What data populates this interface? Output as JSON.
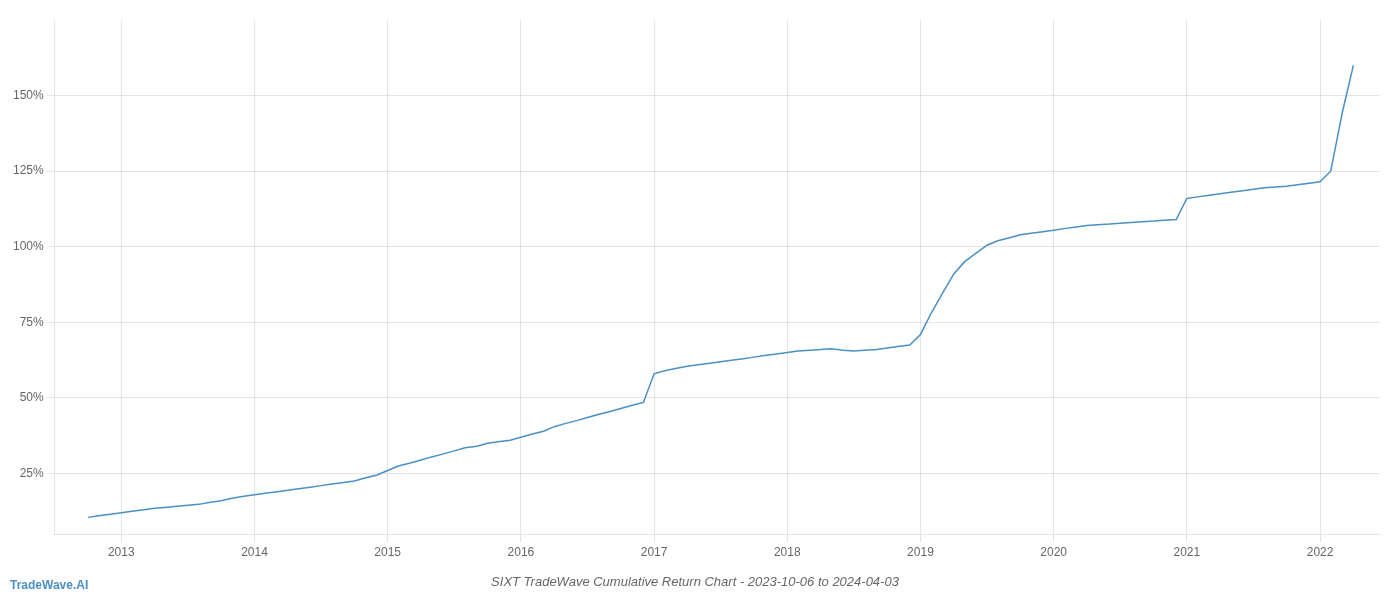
{
  "chart_data": {
    "type": "line",
    "title": "SIXT TradeWave Cumulative Return Chart - 2023-10-06 to 2024-04-03",
    "annotations": [
      "TradeWave.AI"
    ],
    "color": "#4a90c4",
    "grid": true,
    "x": [
      2012.75,
      2012.83,
      2012.92,
      2013.0,
      2013.08,
      2013.17,
      2013.25,
      2013.33,
      2013.42,
      2013.5,
      2013.58,
      2013.67,
      2013.75,
      2013.83,
      2013.92,
      2014.0,
      2014.08,
      2014.17,
      2014.25,
      2014.33,
      2014.42,
      2014.5,
      2014.58,
      2014.67,
      2014.75,
      2014.83,
      2014.92,
      2015.0,
      2015.08,
      2015.17,
      2015.25,
      2015.33,
      2015.42,
      2015.5,
      2015.58,
      2015.67,
      2015.75,
      2015.83,
      2015.92,
      2016.0,
      2016.08,
      2016.17,
      2016.25,
      2016.33,
      2016.42,
      2016.5,
      2016.58,
      2016.67,
      2016.75,
      2016.83,
      2016.92,
      2017.0,
      2017.08,
      2017.17,
      2017.25,
      2017.33,
      2017.42,
      2017.5,
      2017.58,
      2017.67,
      2017.75,
      2017.83,
      2017.92,
      2018.0,
      2018.08,
      2018.17,
      2018.25,
      2018.33,
      2018.42,
      2018.5,
      2018.58,
      2018.67,
      2018.75,
      2018.83,
      2018.92,
      2019.0,
      2019.08,
      2019.17,
      2019.25,
      2019.33,
      2019.42,
      2019.5,
      2019.58,
      2019.67,
      2019.75,
      2019.83,
      2019.92,
      2020.0,
      2020.08,
      2020.17,
      2020.25,
      2020.33,
      2020.42,
      2020.5,
      2020.58,
      2020.67,
      2020.75,
      2020.83,
      2020.92,
      2021.0,
      2021.08,
      2021.17,
      2021.25,
      2021.33,
      2021.42,
      2021.5,
      2021.58,
      2021.67,
      2021.75,
      2021.83,
      2021.92,
      2022.0,
      2022.08,
      2022.17,
      2022.25
    ],
    "values": [
      10.5,
      11.0,
      11.5,
      12.0,
      12.5,
      13.0,
      13.5,
      13.8,
      14.2,
      14.5,
      14.8,
      15.5,
      16.0,
      16.8,
      17.5,
      18.0,
      18.5,
      19.0,
      19.5,
      20.0,
      20.5,
      21.0,
      21.5,
      22.0,
      22.5,
      23.5,
      24.5,
      26.0,
      27.5,
      28.5,
      29.5,
      30.5,
      31.5,
      32.5,
      33.5,
      34.0,
      35.0,
      35.5,
      36.0,
      37.0,
      38.0,
      39.0,
      40.5,
      41.5,
      42.5,
      43.5,
      44.5,
      45.5,
      46.5,
      47.5,
      48.5,
      58.0,
      59.0,
      59.8,
      60.5,
      61.0,
      61.5,
      62.0,
      62.5,
      63.0,
      63.5,
      64.0,
      64.5,
      65.0,
      65.5,
      65.8,
      66.0,
      66.3,
      65.8,
      65.5,
      65.8,
      66.0,
      66.5,
      67.0,
      67.5,
      71.0,
      78.0,
      85.0,
      91.0,
      95.0,
      98.0,
      100.5,
      102.0,
      103.0,
      104.0,
      104.5,
      105.0,
      105.5,
      106.0,
      106.5,
      107.0,
      107.3,
      107.5,
      107.8,
      108.0,
      108.3,
      108.5,
      108.8,
      109.0,
      116.0,
      116.5,
      117.0,
      117.5,
      118.0,
      118.5,
      119.0,
      119.5,
      119.8,
      120.0,
      120.5,
      121.0,
      121.5,
      125.0,
      145.0,
      160.0
    ],
    "xlim": [
      2012.5,
      2022.45
    ],
    "xticks": [
      2013,
      2014,
      2015,
      2016,
      2017,
      2018,
      2019,
      2020,
      2021,
      2022
    ],
    "ylim": [
      5,
      175
    ],
    "yticks": [
      {
        "value": 25,
        "label": "25%"
      },
      {
        "value": 50,
        "label": "50%"
      },
      {
        "value": 75,
        "label": "75%"
      },
      {
        "value": 100,
        "label": "100%"
      },
      {
        "value": 125,
        "label": "125%"
      },
      {
        "value": 150,
        "label": "150%"
      }
    ]
  }
}
